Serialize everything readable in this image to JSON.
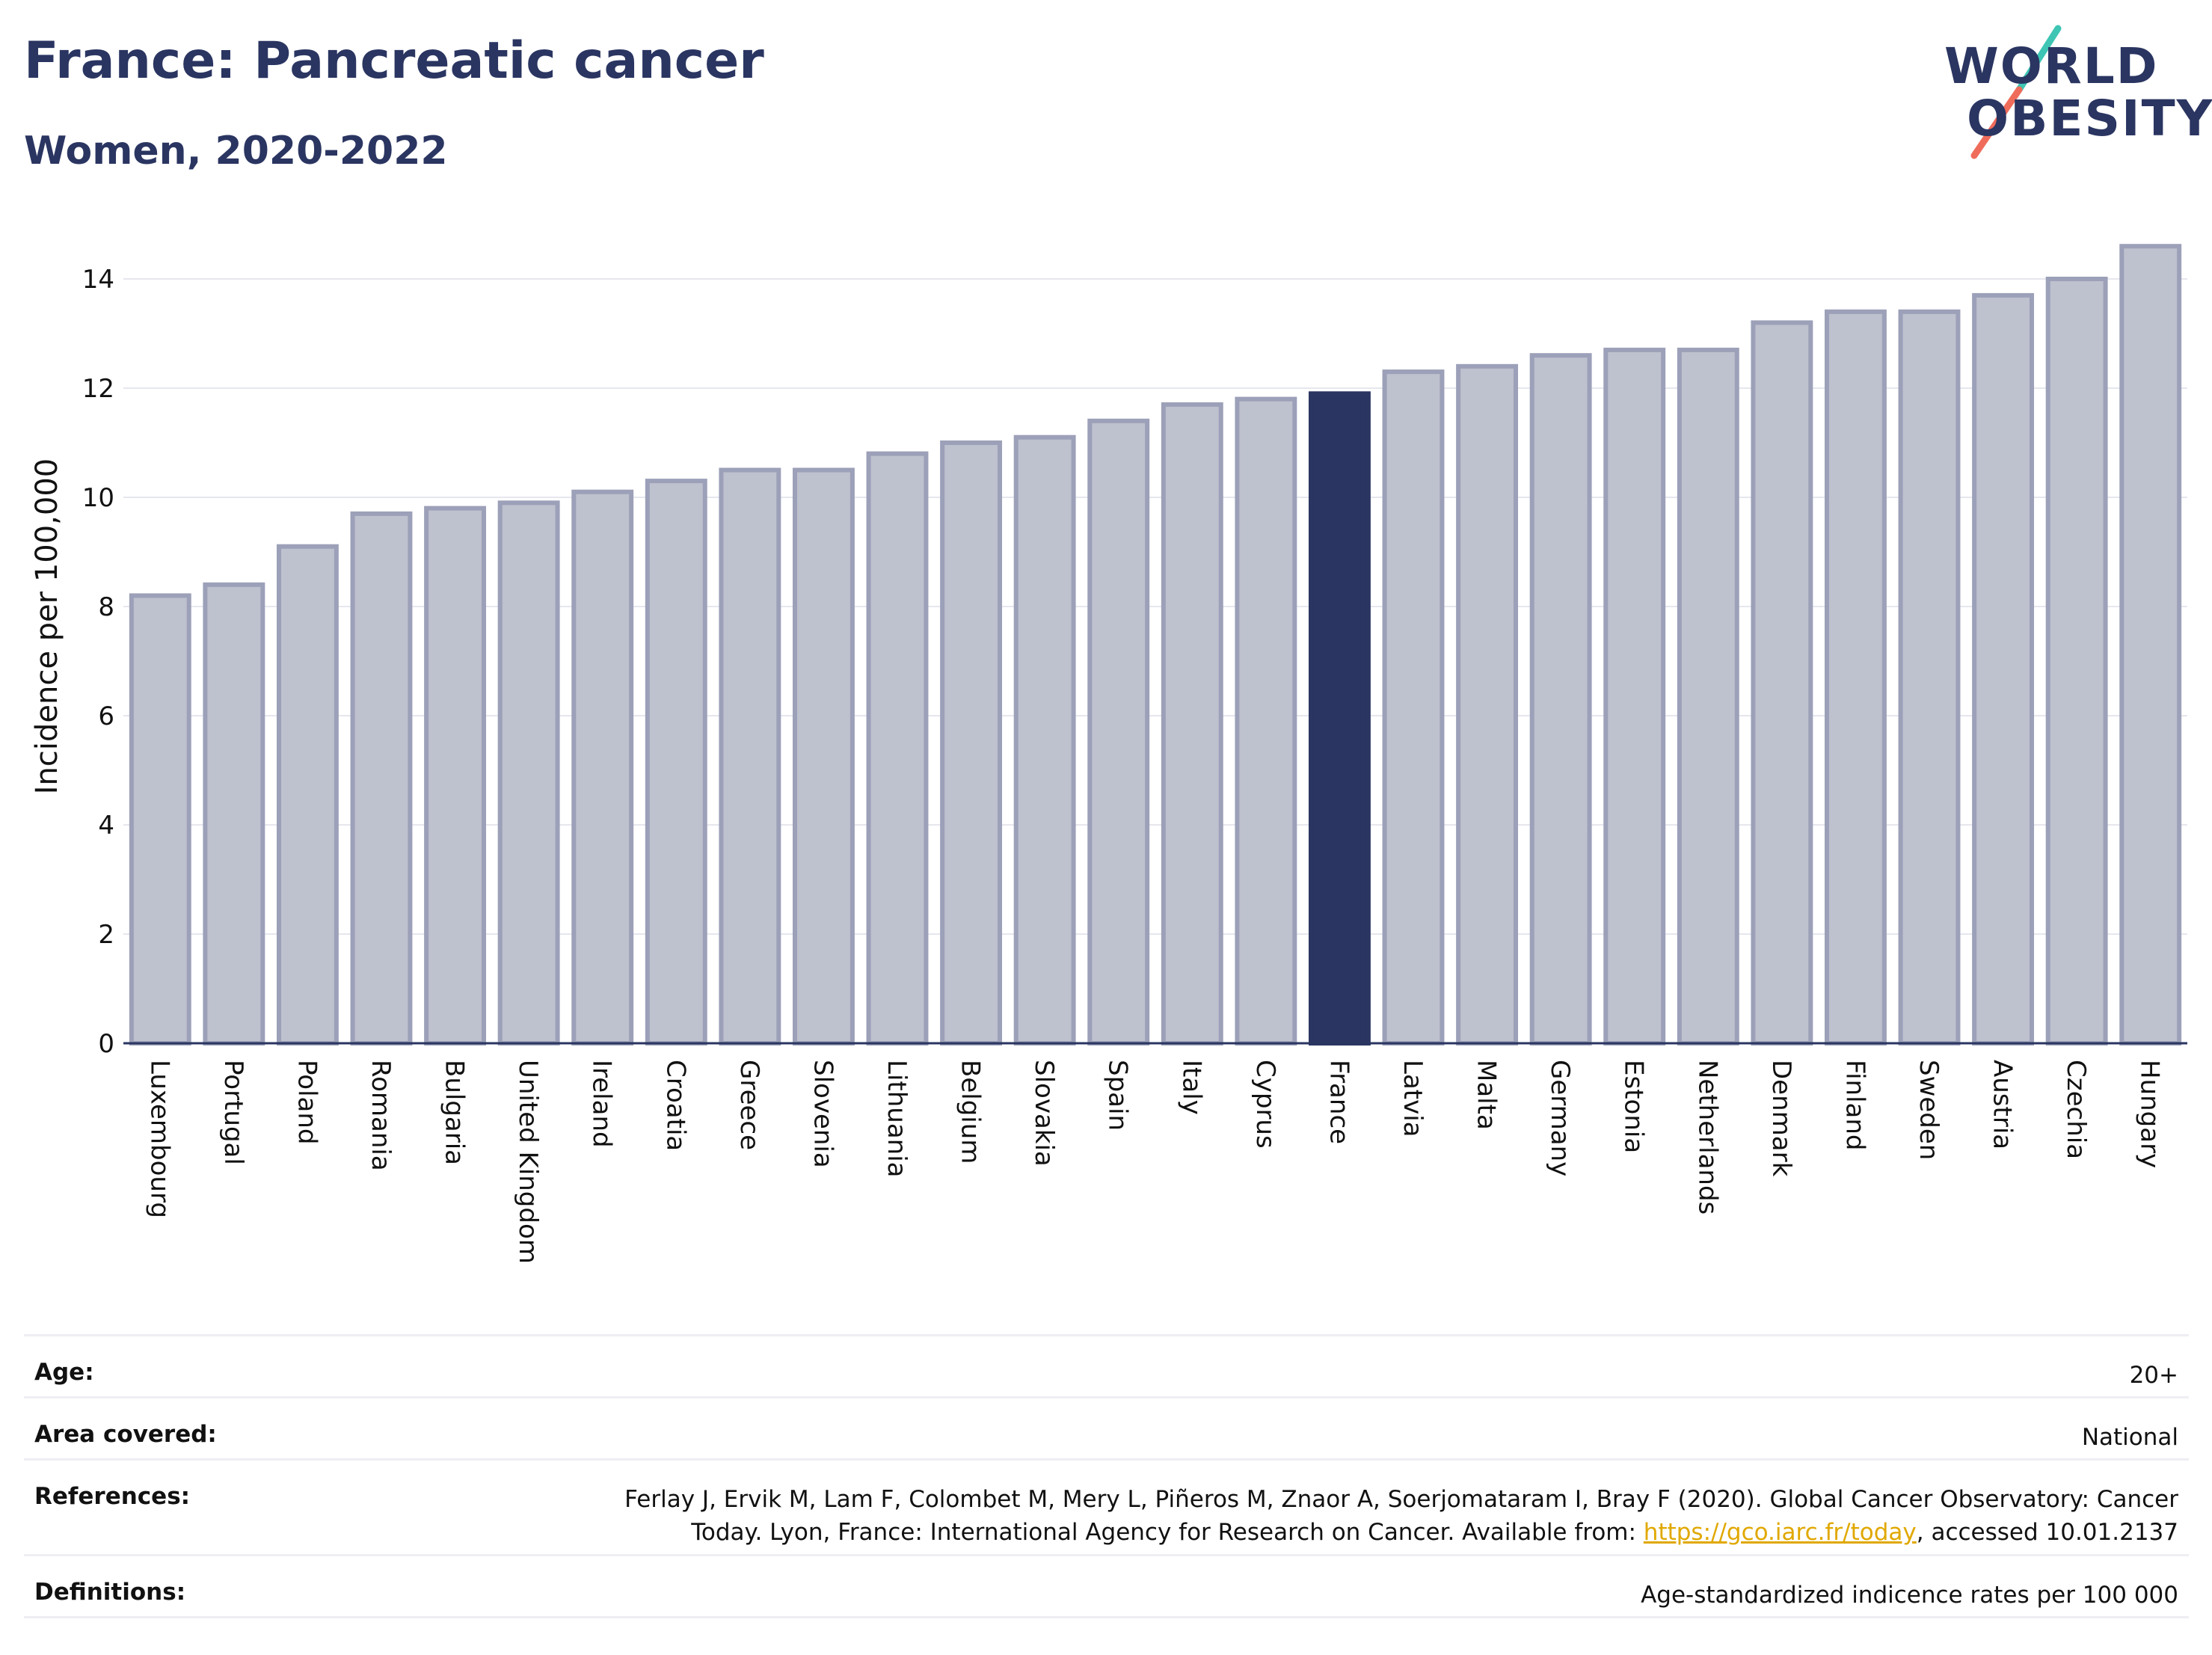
{
  "header": {
    "title": "France: Pancreatic cancer",
    "subtitle": "Women, 2020-2022"
  },
  "logo": {
    "line1": "WORLD",
    "line2": "OBESITY",
    "accent_teal": "#3ec5b4",
    "accent_coral": "#ef6c5b"
  },
  "colors": {
    "bar": "#bec1ce",
    "bar_border": "#9ca0b8",
    "highlight": "#2a3561"
  },
  "chart_data": {
    "type": "bar",
    "ylabel": "Incidence per 100,000",
    "ylim": [
      0,
      15
    ],
    "yticks": [
      0,
      2,
      4,
      6,
      8,
      10,
      12,
      14
    ],
    "grid": true,
    "highlight": "France",
    "categories": [
      "Luxembourg",
      "Portugal",
      "Poland",
      "Romania",
      "Bulgaria",
      "United Kingdom",
      "Ireland",
      "Croatia",
      "Greece",
      "Slovenia",
      "Lithuania",
      "Belgium",
      "Slovakia",
      "Spain",
      "Italy",
      "Cyprus",
      "France",
      "Latvia",
      "Malta",
      "Germany",
      "Estonia",
      "Netherlands",
      "Denmark",
      "Finland",
      "Sweden",
      "Austria",
      "Czechia",
      "Hungary"
    ],
    "values": [
      8.2,
      8.4,
      9.1,
      9.7,
      9.8,
      9.9,
      10.1,
      10.3,
      10.5,
      10.5,
      10.8,
      11.0,
      11.1,
      11.4,
      11.7,
      11.8,
      11.9,
      12.3,
      12.4,
      12.6,
      12.7,
      12.7,
      13.2,
      13.4,
      13.4,
      13.7,
      14.0,
      14.6
    ]
  },
  "info": {
    "age_label": "Age:",
    "age_value": "20+",
    "area_label": "Area covered:",
    "area_value": "National",
    "references_label": "References:",
    "references_line1": "Ferlay J, Ervik M, Lam F, Colombet M, Mery L, Piñeros M, Znaor A, Soerjomataram I, Bray F (2020). Global Cancer Observatory: Cancer",
    "references_line2_pre": "Today. Lyon, France: International Agency for Research on Cancer. Available from: ",
    "references_link": "https://gco.iarc.fr/today",
    "references_line2_post": ", accessed 10.01.2137",
    "definitions_label": "Definitions:",
    "definitions_value": "Age-standardized indicence rates per 100 000"
  }
}
